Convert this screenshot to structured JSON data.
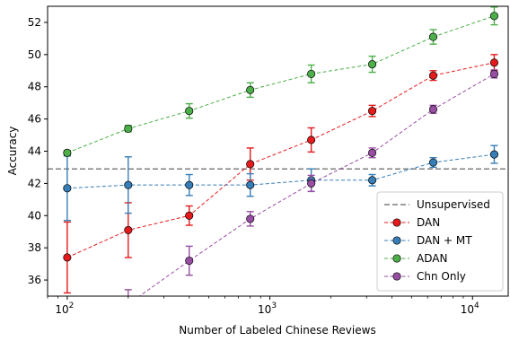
{
  "chart_data": {
    "type": "line",
    "title": "",
    "xlabel": "Number of Labeled Chinese Reviews",
    "ylabel": "Accuracy",
    "x_scale": "log",
    "xlim": [
      80,
      15000
    ],
    "ylim": [
      35,
      53
    ],
    "x_ticks": [
      {
        "value": 100,
        "base": "10",
        "exp": "2"
      },
      {
        "value": 1000,
        "base": "10",
        "exp": "3"
      },
      {
        "value": 10000,
        "base": "10",
        "exp": "4"
      }
    ],
    "y_ticks": [
      36,
      38,
      40,
      42,
      44,
      46,
      48,
      50,
      52
    ],
    "grid": false,
    "legend_position": "lower-right",
    "reference_line": {
      "name": "Unsupervised",
      "y": 42.9,
      "color": "#7f7f7f"
    },
    "series": [
      {
        "name": "DAN",
        "color": "#e41a1c",
        "x": [
          100,
          200,
          400,
          800,
          1600,
          3200,
          6400,
          12800
        ],
        "y": [
          37.4,
          39.1,
          40.0,
          43.2,
          44.7,
          46.5,
          48.7,
          49.5
        ],
        "err": [
          2.2,
          1.7,
          0.6,
          1.0,
          0.75,
          0.35,
          0.3,
          0.5
        ]
      },
      {
        "name": "DAN + MT",
        "color": "#377eb8",
        "x": [
          100,
          200,
          400,
          800,
          1600,
          3200,
          6400,
          12800
        ],
        "y": [
          41.7,
          41.9,
          41.9,
          41.9,
          42.2,
          42.2,
          43.3,
          43.8
        ],
        "err": [
          2.0,
          1.75,
          0.65,
          0.7,
          0.7,
          0.35,
          0.3,
          0.55
        ]
      },
      {
        "name": "ADAN",
        "color": "#4daf4a",
        "x": [
          100,
          200,
          400,
          800,
          1600,
          3200,
          6400,
          12800
        ],
        "y": [
          43.9,
          45.4,
          46.5,
          47.8,
          48.8,
          49.4,
          51.1,
          52.4
        ],
        "err": [
          0.15,
          0.2,
          0.45,
          0.45,
          0.55,
          0.5,
          0.45,
          0.55
        ]
      },
      {
        "name": "Chn Only",
        "color": "#984ea3",
        "x": [
          200,
          400,
          800,
          1600,
          3200,
          6400,
          12800
        ],
        "y": [
          34.5,
          37.2,
          39.8,
          42.0,
          43.9,
          46.6,
          48.8
        ],
        "err": [
          0.9,
          0.9,
          0.45,
          0.5,
          0.3,
          0.25,
          0.25
        ]
      }
    ]
  }
}
